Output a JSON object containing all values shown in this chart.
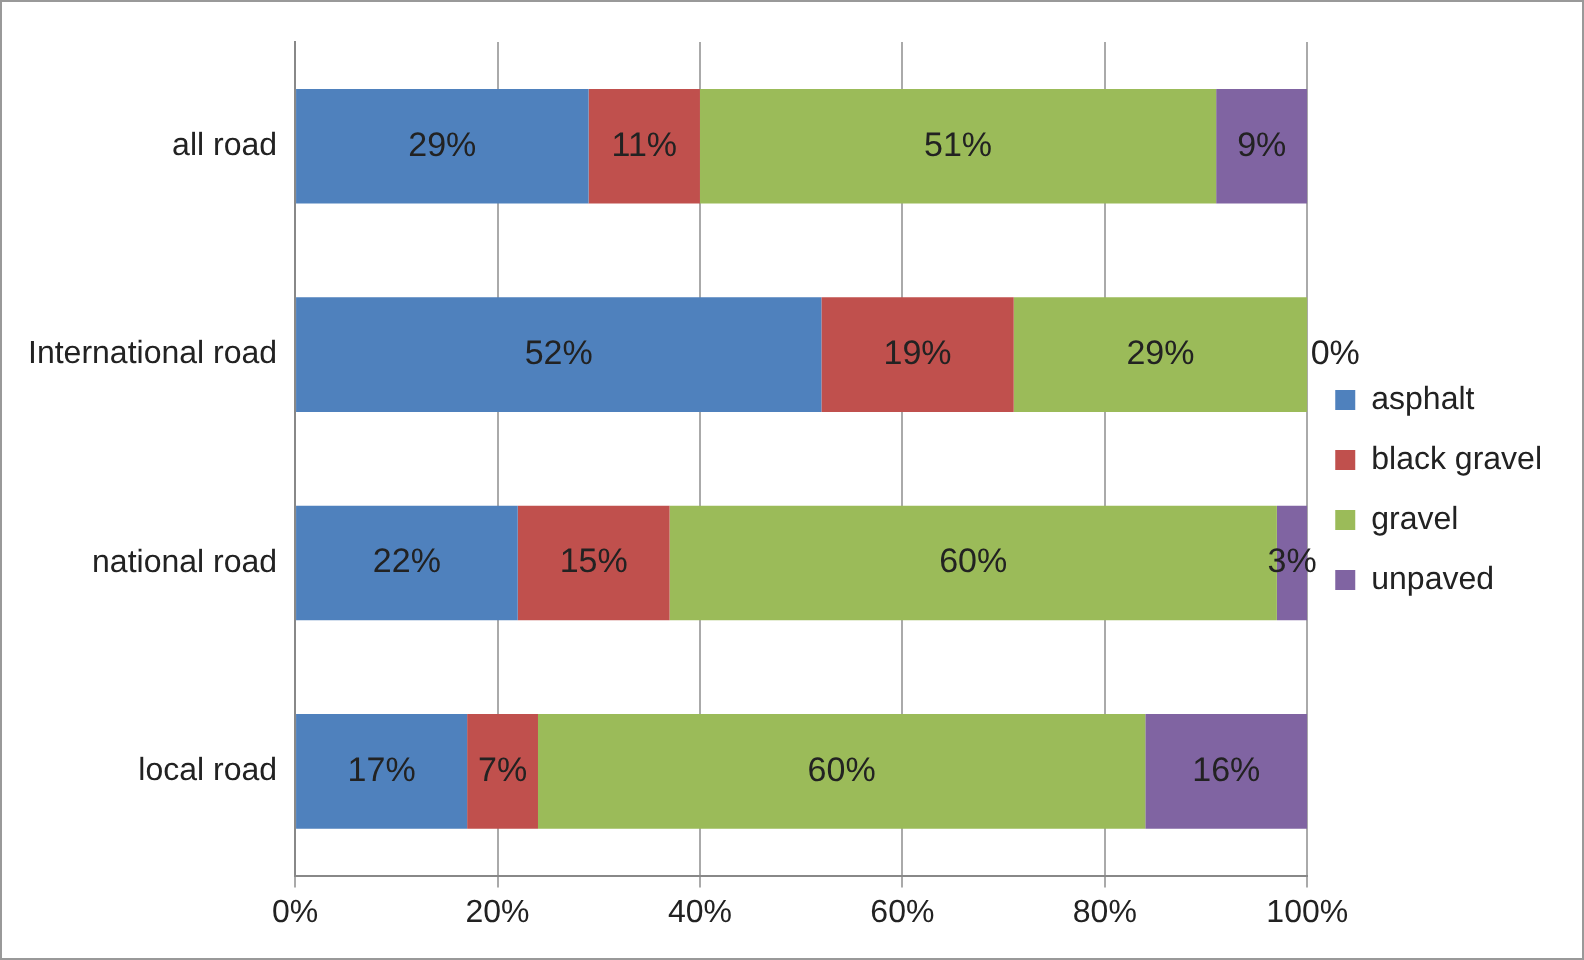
{
  "chart_data": {
    "type": "bar",
    "orientation": "horizontal",
    "stacked": true,
    "categories": [
      "all road",
      "International road",
      "national road",
      "local road"
    ],
    "series": [
      {
        "name": "asphalt",
        "color": "#4f81bd",
        "values": [
          29,
          52,
          22,
          17
        ],
        "value_labels": [
          "29%",
          "52%",
          "22%",
          "17%"
        ]
      },
      {
        "name": "black gravel",
        "color": "#c0504d",
        "values": [
          11,
          19,
          15,
          7
        ],
        "value_labels": [
          "11%",
          "19%",
          "15%",
          "7%"
        ]
      },
      {
        "name": "gravel",
        "color": "#9bbb59",
        "values": [
          51,
          29,
          60,
          60
        ],
        "value_labels": [
          "51%",
          "29%",
          "60%",
          "60%"
        ]
      },
      {
        "name": "unpaved",
        "color": "#8064a2",
        "values": [
          9,
          0,
          3,
          16
        ],
        "value_labels": [
          "9%",
          "0%",
          "3%",
          "16%"
        ]
      }
    ],
    "xlim": [
      0,
      100
    ],
    "xticks": [
      {
        "value": 0,
        "label": "0%"
      },
      {
        "value": 20,
        "label": "20%"
      },
      {
        "value": 40,
        "label": "40%"
      },
      {
        "value": 60,
        "label": "60%"
      },
      {
        "value": 80,
        "label": "80%"
      },
      {
        "value": 100,
        "label": "100%"
      }
    ],
    "grid": "x",
    "legend": "right"
  }
}
